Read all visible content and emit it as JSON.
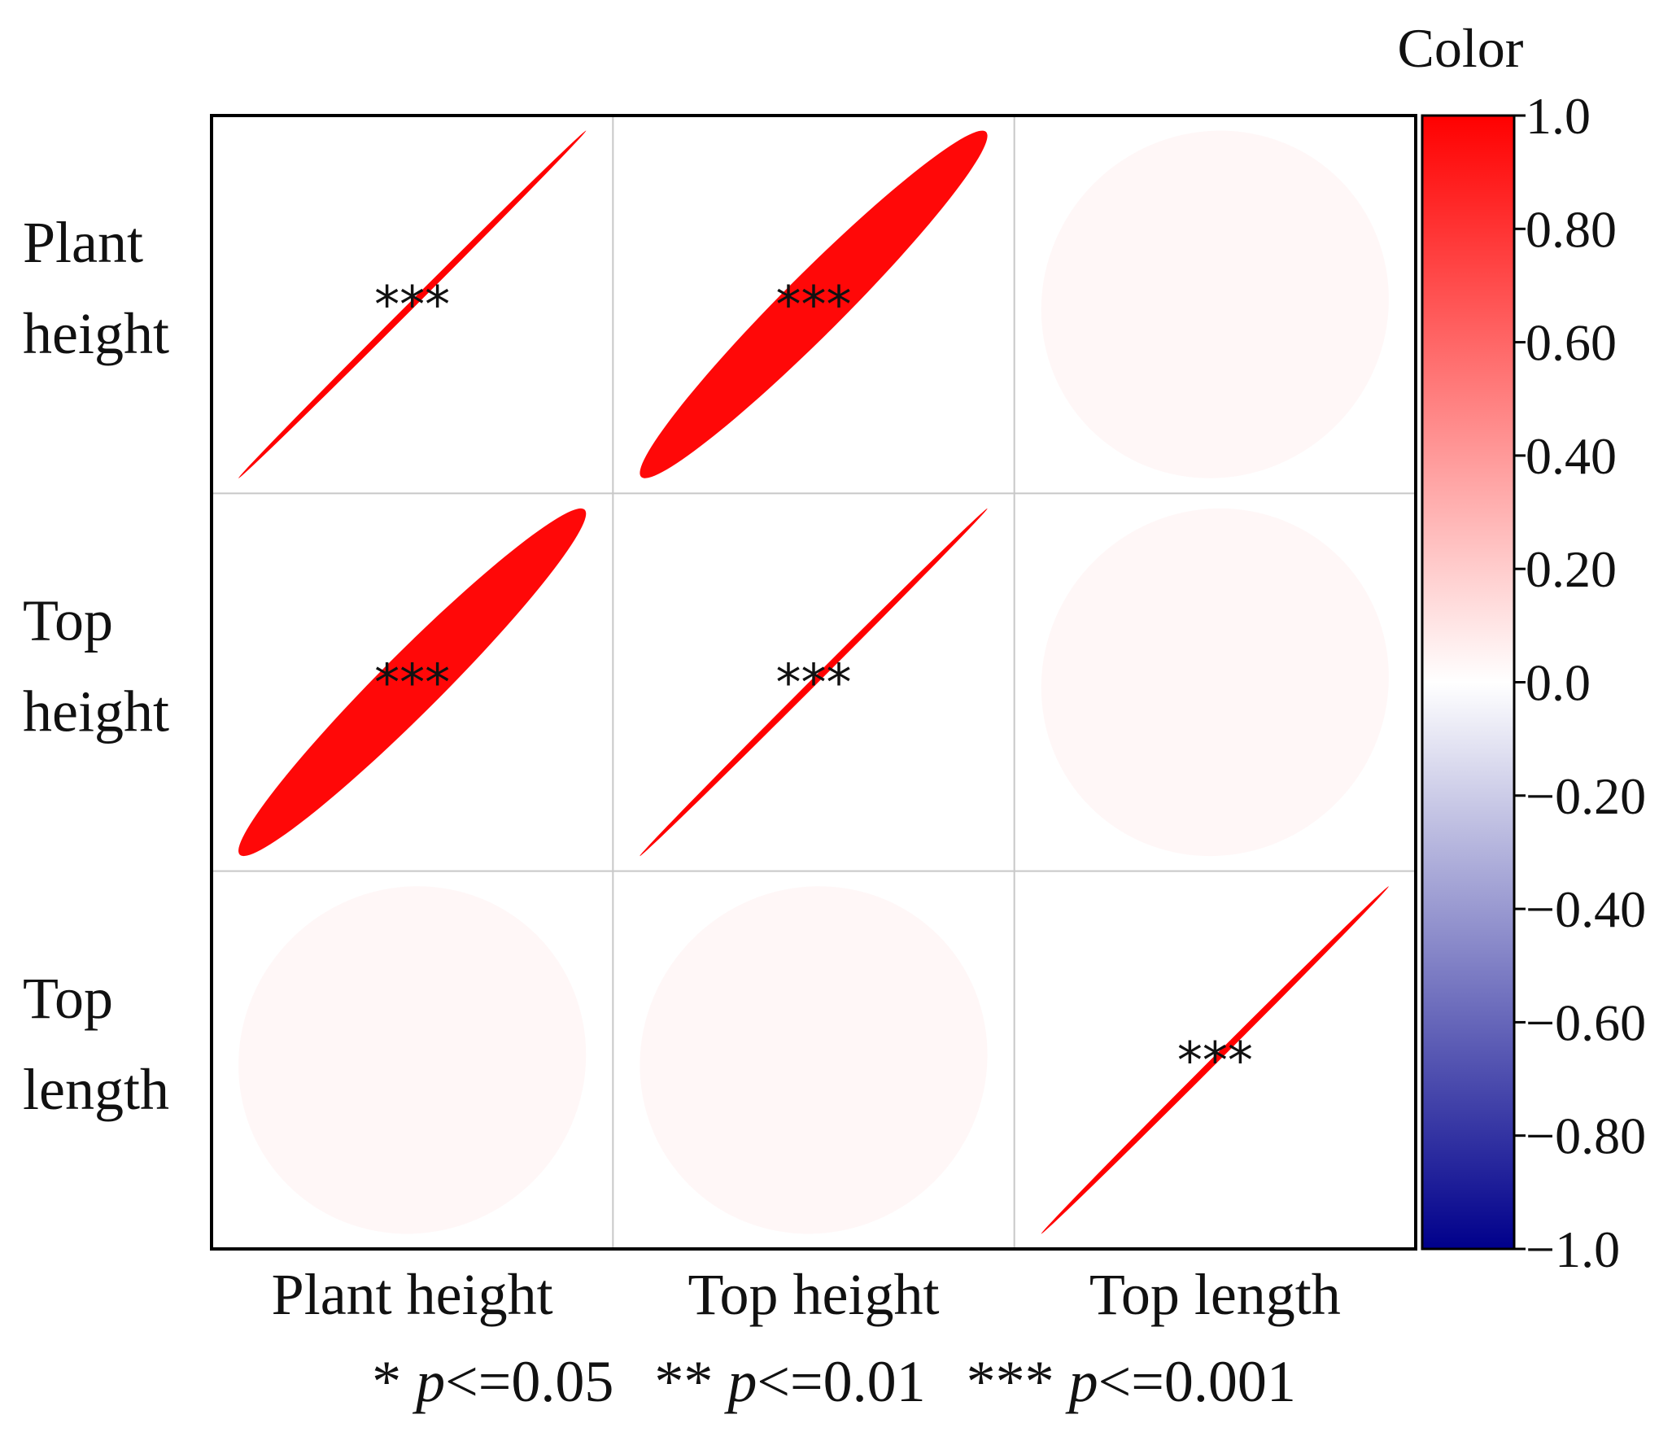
{
  "chart_data": {
    "type": "correlation-matrix",
    "title": "",
    "variables": [
      "Plant height",
      "Top height",
      "Top length"
    ],
    "row_labels": [
      [
        "Plant",
        "height"
      ],
      [
        "Top",
        "height"
      ],
      [
        "Top",
        "length"
      ]
    ],
    "col_labels": [
      "Plant height",
      "Top height",
      "Top length"
    ],
    "matrix": [
      [
        1.0,
        0.97,
        0.03
      ],
      [
        0.97,
        1.0,
        0.03
      ],
      [
        0.03,
        0.03,
        1.0
      ]
    ],
    "significance": [
      [
        "***",
        "***",
        ""
      ],
      [
        "***",
        "***",
        ""
      ],
      [
        "",
        "",
        "***"
      ]
    ],
    "colorbar": {
      "title": "Color",
      "range": [
        -1.0,
        1.0
      ],
      "ticks": [
        1.0,
        0.8,
        0.6,
        0.4,
        0.2,
        0.0,
        -0.2,
        -0.4,
        -0.6,
        -0.8,
        -1.0
      ],
      "tick_labels": [
        "1.0",
        "0.80",
        "0.60",
        "0.40",
        "0.20",
        "0.0",
        "−0.20",
        "−0.40",
        "−0.60",
        "−0.80",
        "−1.0"
      ],
      "low_color": "#00008b",
      "mid_color": "#ffffff",
      "high_color": "#ff0000"
    },
    "legend": {
      "items": [
        {
          "stars": "*",
          "text": "<=0.05"
        },
        {
          "stars": "**",
          "text": "<=0.01"
        },
        {
          "stars": "***",
          "text": "<=0.001"
        }
      ],
      "p_symbol": "p"
    }
  }
}
